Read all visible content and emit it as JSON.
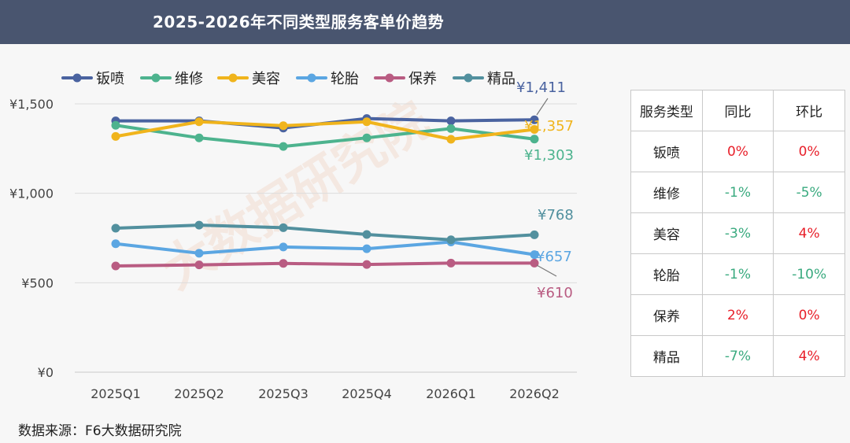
{
  "title": "2025-2026年不同类型服务客单价趋势",
  "source": "数据来源：F6大数据研究院",
  "watermark": "大数据研究院",
  "colors": {
    "header_bg": "#49556f",
    "positive": "#e8202a",
    "negative": "#3aaa7f"
  },
  "chart_data": {
    "type": "line",
    "categories": [
      "2025Q1",
      "2025Q2",
      "2025Q3",
      "2025Q4",
      "2026Q1",
      "2026Q2"
    ],
    "yticks": [
      "¥1,500",
      "¥1,000",
      "¥500",
      "¥0"
    ],
    "ylim": [
      0,
      1650
    ],
    "grid": true,
    "legend_position": "top",
    "series": [
      {
        "name": "钣喷",
        "color": "#4a63a0",
        "values": [
          1405,
          1405,
          1365,
          1418,
          1405,
          1411
        ],
        "end_label": "¥1,411"
      },
      {
        "name": "维修",
        "color": "#4db38e",
        "values": [
          1380,
          1310,
          1262,
          1310,
          1362,
          1303
        ],
        "end_label": "¥1,303"
      },
      {
        "name": "美容",
        "color": "#f0b41c",
        "values": [
          1318,
          1400,
          1378,
          1400,
          1302,
          1357
        ],
        "end_label": "¥1,357"
      },
      {
        "name": "轮胎",
        "color": "#5ba6e2",
        "values": [
          718,
          665,
          700,
          690,
          728,
          657
        ],
        "end_label": "¥657"
      },
      {
        "name": "保养",
        "color": "#b95c82",
        "values": [
          594,
          600,
          608,
          602,
          610,
          610
        ],
        "end_label": "¥610"
      },
      {
        "name": "精品",
        "color": "#52909e",
        "values": [
          805,
          822,
          808,
          770,
          740,
          768
        ],
        "end_label": "¥768"
      }
    ]
  },
  "table": {
    "headers": [
      "服务类型",
      "同比",
      "环比"
    ],
    "rows": [
      {
        "type": "钣喷",
        "yoy": "0%",
        "qoq": "0%",
        "yoy_dir": "pos",
        "qoq_dir": "pos"
      },
      {
        "type": "维修",
        "yoy": "-1%",
        "qoq": "-5%",
        "yoy_dir": "neg",
        "qoq_dir": "neg"
      },
      {
        "type": "美容",
        "yoy": "-3%",
        "qoq": "4%",
        "yoy_dir": "neg",
        "qoq_dir": "pos"
      },
      {
        "type": "轮胎",
        "yoy": "-1%",
        "qoq": "-10%",
        "yoy_dir": "neg",
        "qoq_dir": "neg"
      },
      {
        "type": "保养",
        "yoy": "2%",
        "qoq": "0%",
        "yoy_dir": "pos",
        "qoq_dir": "pos"
      },
      {
        "type": "精品",
        "yoy": "-7%",
        "qoq": "4%",
        "yoy_dir": "neg",
        "qoq_dir": "pos"
      }
    ]
  }
}
